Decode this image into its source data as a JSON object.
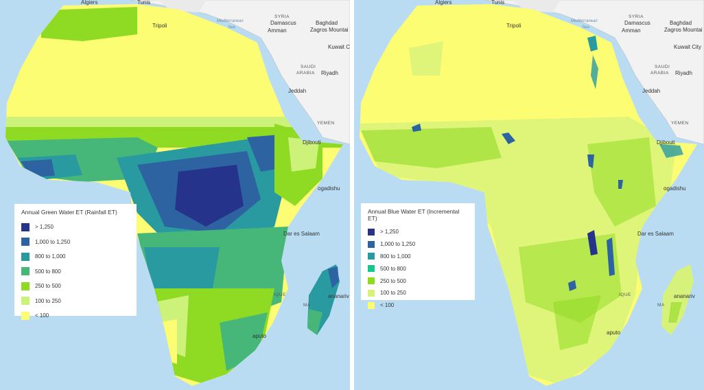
{
  "maps": [
    {
      "legend": {
        "title": "Annual Green Water ET (Rainfall ET)",
        "classes": [
          {
            "label": "> 1,250",
            "color": "#26338b"
          },
          {
            "label": "1,000 to 1,250",
            "color": "#2c63a0"
          },
          {
            "label": "800 to 1,000",
            "color": "#2a9aa1"
          },
          {
            "label": "500 to 800",
            "color": "#46b779"
          },
          {
            "label": "250 to 500",
            "color": "#8fdb24"
          },
          {
            "label": "100 to 250",
            "color": "#cdf27a"
          },
          {
            "label": "< 100",
            "color": "#fdfd74"
          }
        ]
      },
      "labels": {
        "algiers": "Algiers",
        "tunis": "Tunis",
        "tripoli": "Tripoli",
        "syria": "SYRIA",
        "damascus": "Damascus",
        "baghdad": "Baghdad",
        "amman": "Amman",
        "zagros": "Zagros Mountai",
        "med_sea_1": "Mediterranean",
        "med_sea_2": "Sea",
        "kuwait": "Kuwait City",
        "saudi_1": "SAUDI",
        "saudi_2": "ARABIA",
        "riyadh": "Riyadh",
        "jeddah": "Jeddah",
        "yemen": "YEMEN",
        "djibouti": "Djibouti",
        "mogadishu": "ogadishu",
        "dar": "Dar es Salaam",
        "antananarivo": "ananariv",
        "maputo": "aputo",
        "moz": "IQUE",
        "mad": "MA"
      }
    },
    {
      "legend": {
        "title": "Annual Blue Water ET (Incremental ET)",
        "classes": [
          {
            "label": "> 1,250",
            "color": "#26338b"
          },
          {
            "label": "1,000 to 1,250",
            "color": "#2c63a0"
          },
          {
            "label": "800 to 1,000",
            "color": "#2a9aa1"
          },
          {
            "label": "500 to 800",
            "color": "#19c58d"
          },
          {
            "label": "250 to 500",
            "color": "#8fdb24"
          },
          {
            "label": "100 to 250",
            "color": "#d6f27b"
          },
          {
            "label": "< 100",
            "color": "#fdfd74"
          }
        ]
      },
      "labels": {
        "algiers": "Algiers",
        "tunis": "Tunis",
        "tripoli": "Tripoli",
        "syria": "SYRIA",
        "damascus": "Damascus",
        "baghdad": "Baghdad",
        "amman": "Amman",
        "zagros": "Zagros Mountai",
        "med_sea_1": "Mediterranean",
        "med_sea_2": "Sea",
        "kuwait": "Kuwait City",
        "saudi_1": "SAUDI",
        "saudi_2": "ARABIA",
        "riyadh": "Riyadh",
        "jeddah": "Jeddah",
        "yemen": "YEMEN",
        "djibouti": "Djibouti",
        "mogadishu": "ogadishu",
        "dar": "Dar es Salaam",
        "antananarivo": "ananariv",
        "maputo": "aputo",
        "moz": "IQUE",
        "mad": "MA"
      }
    }
  ],
  "colors": {
    "ocean": "#b9dcf3",
    "land": "#f2f2f2",
    "border": "#bdbdbd"
  }
}
